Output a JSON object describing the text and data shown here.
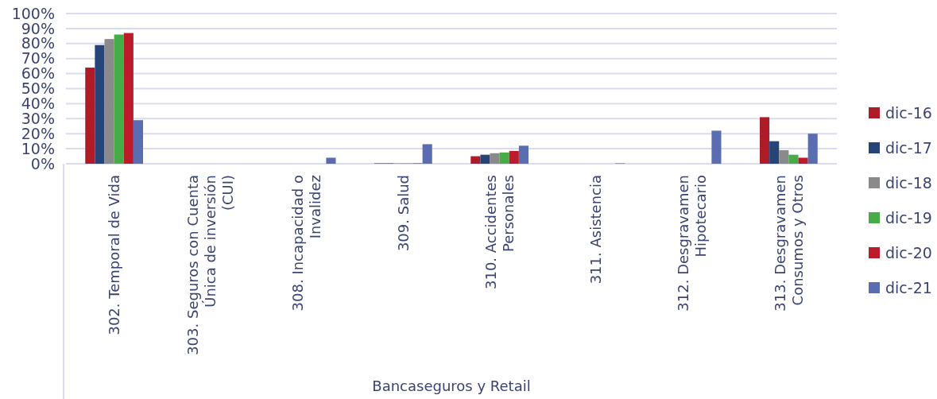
{
  "chart_data": {
    "type": "bar",
    "xlabel": "Bancaseguros y Retail",
    "categories": [
      "302. Temporal de Vida",
      "303. Seguros con Cuenta Única de inversión (CUI)",
      "308. Incapacidad o Invalidez",
      "309. Salud",
      "310. Accidentes Personales",
      "311. Asistencia",
      "312. Desgravamen Hipotecario",
      "313. Desgravamen Consumos y Otros"
    ],
    "series": [
      {
        "name": "dic-16",
        "color": "#ae1c28",
        "values": [
          64,
          0,
          0,
          0.3,
          5,
          0,
          0,
          31
        ]
      },
      {
        "name": "dic-17",
        "color": "#264478",
        "values": [
          79,
          0,
          0,
          0.3,
          6,
          0,
          0,
          15
        ]
      },
      {
        "name": "dic-18",
        "color": "#8a8a8a",
        "values": [
          83,
          0,
          0,
          0.3,
          7,
          0,
          0,
          9
        ]
      },
      {
        "name": "dic-19",
        "color": "#47ab47",
        "values": [
          86,
          0,
          0,
          0.3,
          7.5,
          0,
          0,
          6
        ]
      },
      {
        "name": "dic-20",
        "color": "#be1b2a",
        "values": [
          87,
          0,
          0,
          0.3,
          8.5,
          0,
          0,
          4
        ]
      },
      {
        "name": "dic-21",
        "color": "#5a6db0",
        "values": [
          29,
          0,
          4,
          13,
          12,
          0.3,
          22,
          20
        ]
      }
    ],
    "ylim": [
      0,
      100
    ],
    "yticks": [
      {
        "value": 0,
        "label": "0%"
      },
      {
        "value": 10,
        "label": "10%"
      },
      {
        "value": 20,
        "label": "20%"
      },
      {
        "value": 30,
        "label": "30%"
      },
      {
        "value": 40,
        "label": "40%"
      },
      {
        "value": 50,
        "label": "50%"
      },
      {
        "value": 60,
        "label": "60%"
      },
      {
        "value": 70,
        "label": "70%"
      },
      {
        "value": 80,
        "label": "80%"
      },
      {
        "value": 90,
        "label": "90%"
      },
      {
        "value": 100,
        "label": "100%"
      }
    ],
    "grid": "y",
    "legend": "right"
  }
}
